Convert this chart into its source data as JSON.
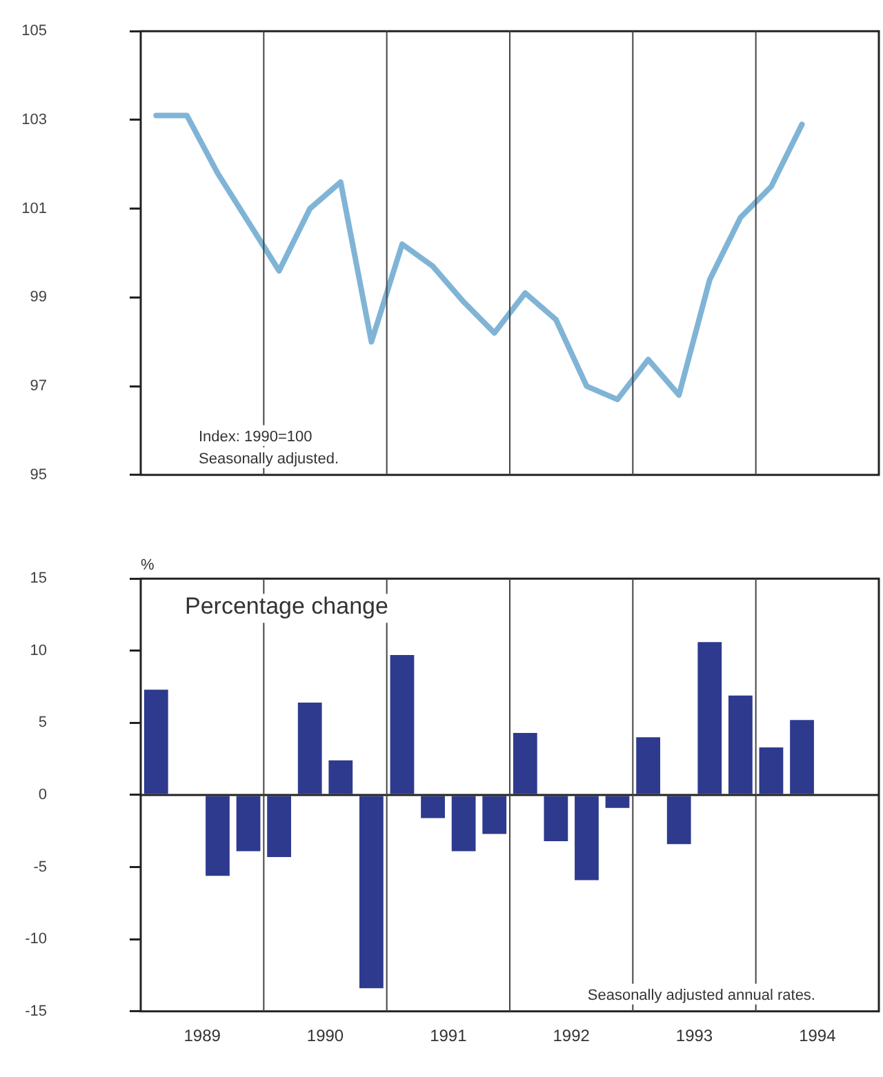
{
  "chart_data": [
    {
      "type": "line",
      "annotations": [
        "Index: 1990=100",
        "Seasonally adjusted."
      ],
      "x": [
        1989.125,
        1989.375,
        1989.625,
        1989.875,
        1990.125,
        1990.375,
        1990.625,
        1990.875,
        1991.125,
        1991.375,
        1991.625,
        1991.875,
        1992.125,
        1992.375,
        1992.625,
        1992.875,
        1993.125,
        1993.375,
        1993.625,
        1993.875,
        1994.125,
        1994.375
      ],
      "series": [
        {
          "color": "#80b4d6",
          "values": [
            103.1,
            103.1,
            101.8,
            100.7,
            99.6,
            101.0,
            101.6,
            98.0,
            100.2,
            99.7,
            98.9,
            98.2,
            99.1,
            98.5,
            97.0,
            96.7,
            97.6,
            96.8,
            99.4,
            100.8,
            101.5,
            102.9
          ]
        }
      ],
      "marker": "none",
      "xlim": [
        1989,
        1995
      ],
      "xticks": [
        {
          "value": 1990,
          "label": null
        },
        {
          "value": 1991,
          "label": null
        },
        {
          "value": 1992,
          "label": null
        },
        {
          "value": 1993,
          "label": null
        },
        {
          "value": 1994,
          "label": null
        }
      ],
      "ylim": [
        95,
        105
      ],
      "yticks": [
        95,
        97,
        99,
        101,
        103,
        105
      ],
      "grid": "x",
      "tick_labels": "y"
    },
    {
      "type": "bar",
      "title": "Percentage change",
      "ylabel": "%",
      "annotations": [
        "Seasonally adjusted annual rates."
      ],
      "x": [
        1989.125,
        1989.375,
        1989.625,
        1989.875,
        1990.125,
        1990.375,
        1990.625,
        1990.875,
        1991.125,
        1991.375,
        1991.625,
        1991.875,
        1992.125,
        1992.375,
        1992.625,
        1992.875,
        1993.125,
        1993.375,
        1993.625,
        1993.875,
        1994.125,
        1994.375
      ],
      "series": [
        {
          "color": "#2e3a8e",
          "values": [
            7.3,
            0,
            -5.6,
            -3.9,
            -4.3,
            6.4,
            2.4,
            -13.4,
            9.7,
            -1.6,
            -3.9,
            -2.7,
            4.3,
            -3.2,
            -5.9,
            -0.9,
            4.0,
            -3.4,
            10.6,
            6.9,
            3.3,
            5.2
          ]
        }
      ],
      "xlim": [
        1989,
        1995
      ],
      "xticks": [
        {
          "value": 1989.5,
          "label": "1989"
        },
        {
          "value": 1990,
          "label": null
        },
        {
          "value": 1990.5,
          "label": "1990"
        },
        {
          "value": 1991,
          "label": null
        },
        {
          "value": 1991.5,
          "label": "1991"
        },
        {
          "value": 1992,
          "label": null
        },
        {
          "value": 1992.5,
          "label": "1992"
        },
        {
          "value": 1993,
          "label": null
        },
        {
          "value": 1993.5,
          "label": "1993"
        },
        {
          "value": 1994,
          "label": null
        },
        {
          "value": 1994.5,
          "label": "1994"
        }
      ],
      "ylim": [
        -15,
        15
      ],
      "yticks": [
        -15,
        -10,
        -5,
        0,
        5,
        10,
        15
      ],
      "grid": "x"
    }
  ]
}
